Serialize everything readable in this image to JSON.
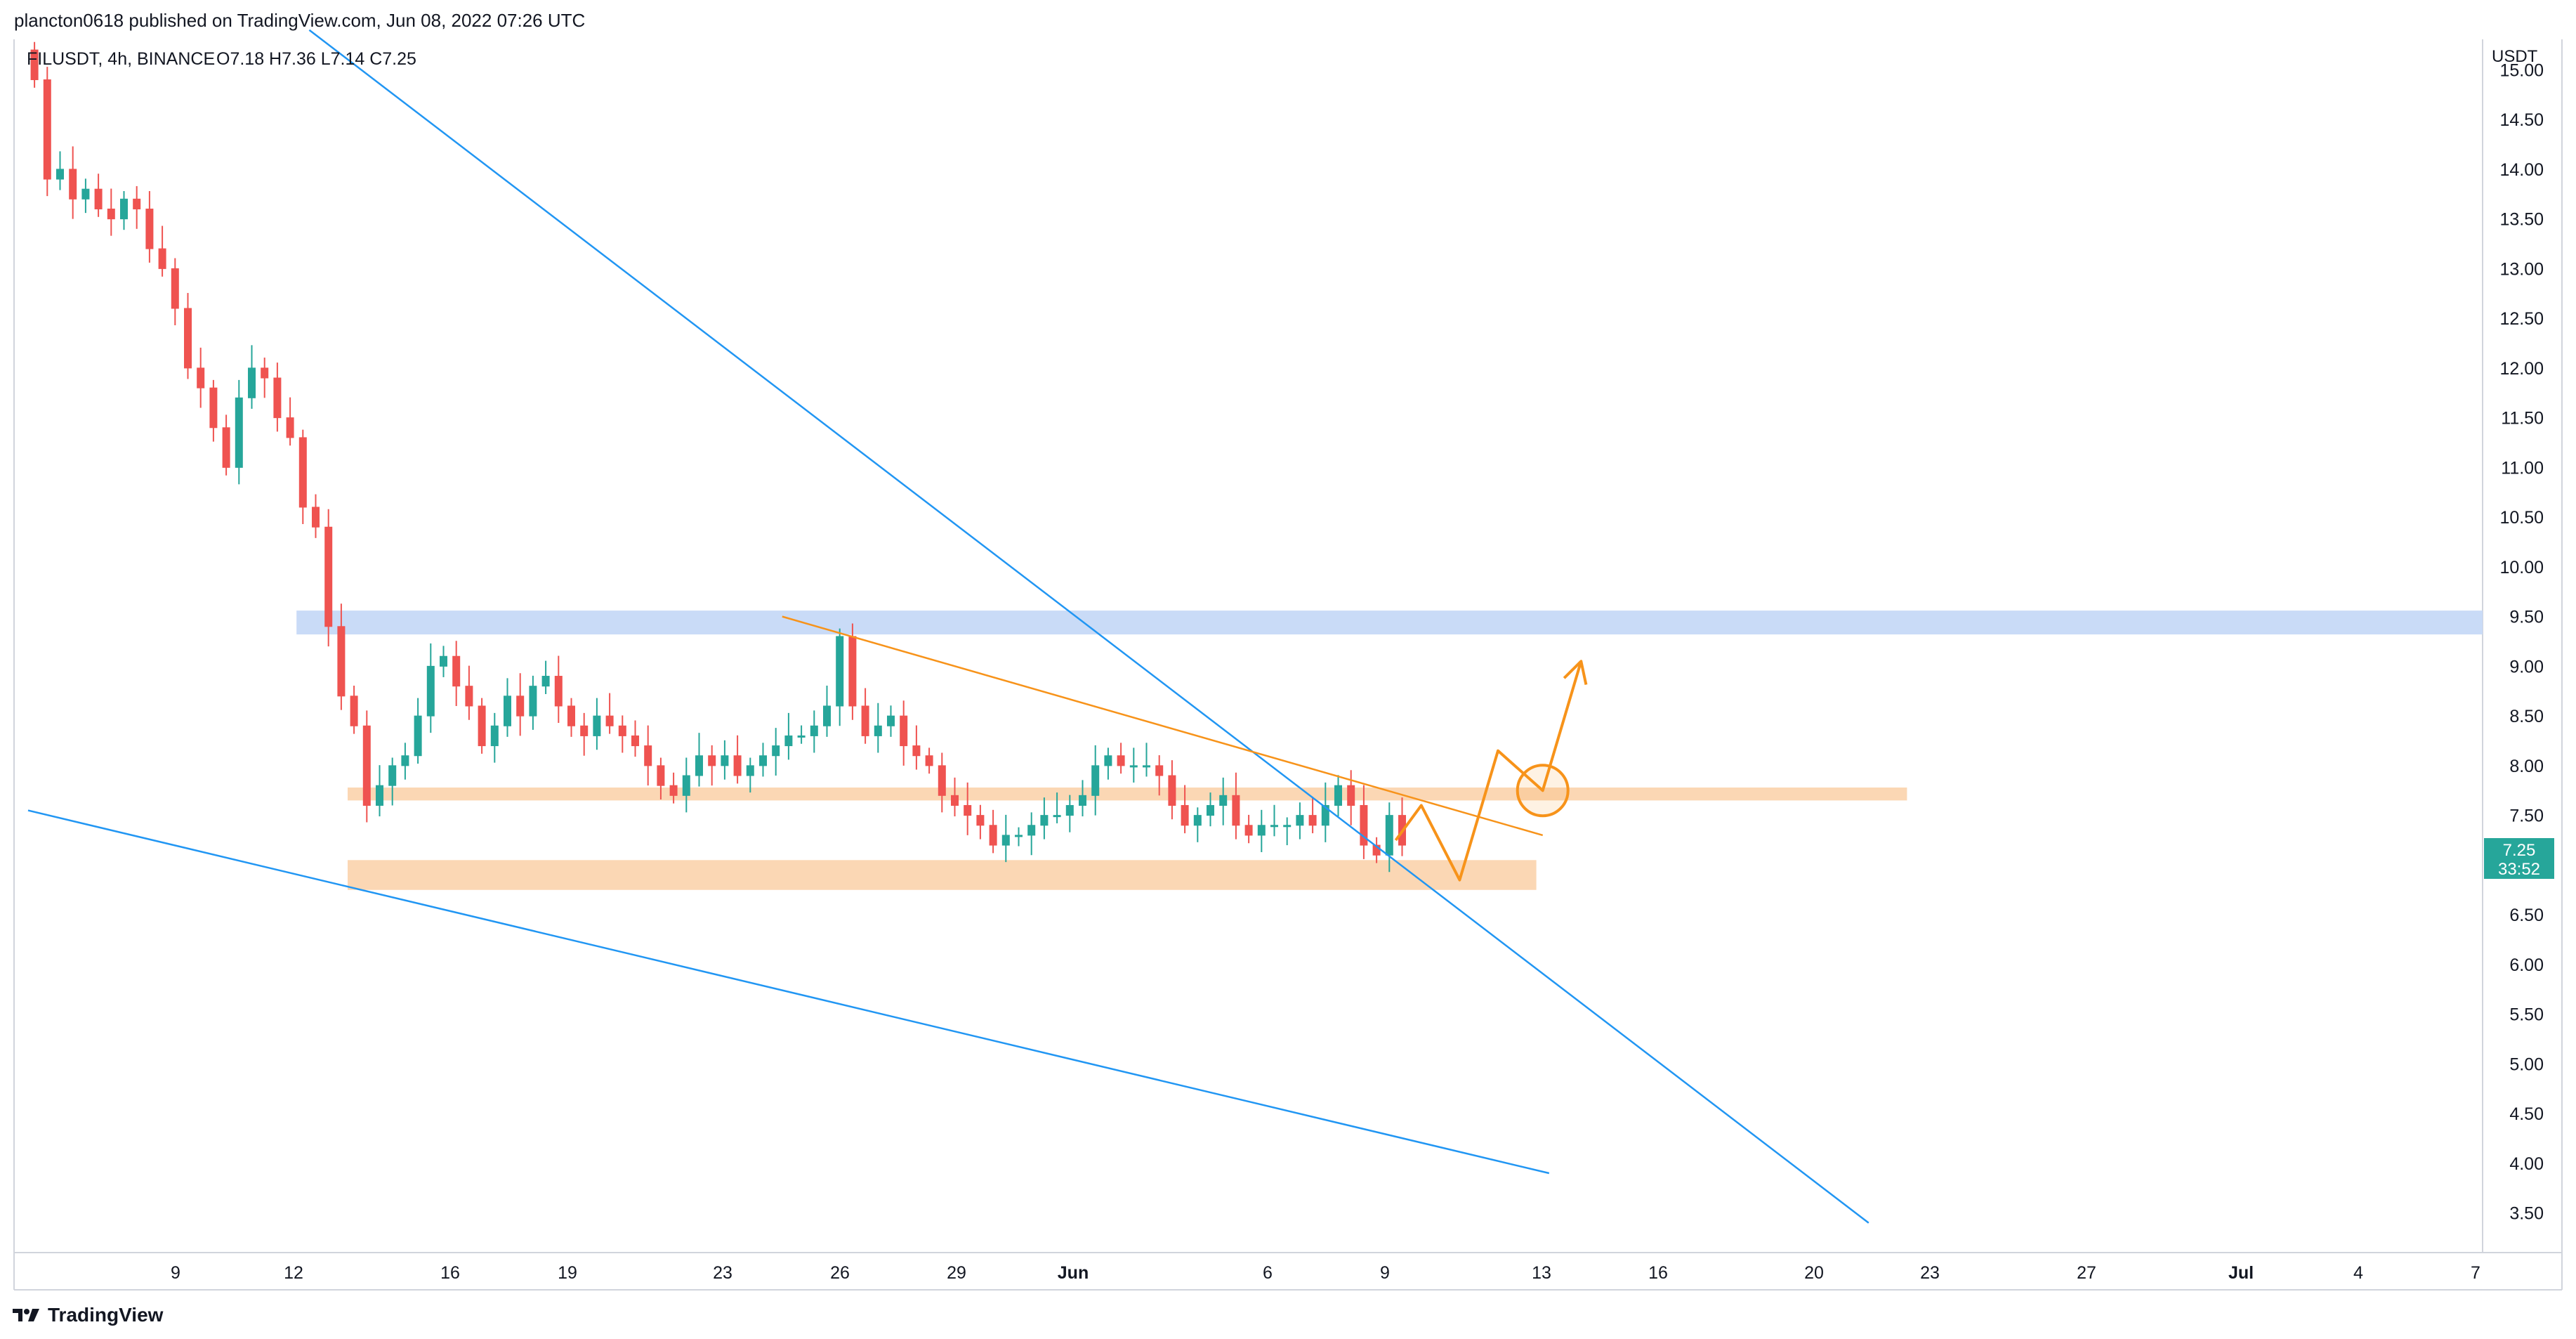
{
  "header": {
    "publisher_line": "plancton0618 published on TradingView.com, Jun 08, 2022 07:26 UTC"
  },
  "legend": {
    "symbol": "FILUSDT, 4h, BINANCE",
    "ohlc": "O7.18  H7.36  L7.14  C7.25"
  },
  "footer": {
    "brand": "TradingView"
  },
  "colors": {
    "up": "#26a69a",
    "down": "#ef5350",
    "blue_line": "#2196f3",
    "orange": "#f7931a",
    "zone_orange": "#fbd7b4",
    "zone_blue": "#c9dbf7",
    "price_tag": "#26a69a"
  },
  "chart_data": {
    "type": "candlestick",
    "currency_label": "USDT",
    "y_ticks": [
      "15.00",
      "14.50",
      "14.00",
      "13.50",
      "13.00",
      "12.50",
      "12.00",
      "11.50",
      "11.00",
      "10.50",
      "10.00",
      "9.50",
      "9.00",
      "8.50",
      "8.00",
      "7.50",
      "6.50",
      "6.00",
      "5.50",
      "5.00",
      "4.50",
      "4.00",
      "3.50"
    ],
    "x_ticks": [
      "9",
      "12",
      "16",
      "19",
      "23",
      "26",
      "29",
      "Jun",
      "6",
      "9",
      "13",
      "16",
      "20",
      "23",
      "27",
      "Jul",
      "4",
      "7"
    ],
    "last_price": "7.25",
    "countdown": "33:52",
    "ylim": [
      3.3,
      15.2
    ],
    "close_path": [
      [
        0,
        14.9
      ],
      [
        1,
        13.9
      ],
      [
        2,
        14.0
      ],
      [
        3,
        13.7
      ],
      [
        4,
        13.8
      ],
      [
        5,
        13.6
      ],
      [
        6,
        13.5
      ],
      [
        7,
        13.7
      ],
      [
        8,
        13.6
      ],
      [
        9,
        13.2
      ],
      [
        10,
        13.0
      ],
      [
        11,
        12.6
      ],
      [
        12,
        12.0
      ],
      [
        13,
        11.8
      ],
      [
        14,
        11.4
      ],
      [
        15,
        11.0
      ],
      [
        16,
        11.7
      ],
      [
        17,
        12.0
      ],
      [
        18,
        11.9
      ],
      [
        19,
        11.5
      ],
      [
        20,
        11.3
      ],
      [
        21,
        10.6
      ],
      [
        22,
        10.4
      ],
      [
        23,
        9.4
      ],
      [
        24,
        8.7
      ],
      [
        25,
        8.4
      ],
      [
        26,
        7.6
      ],
      [
        27,
        7.8
      ],
      [
        28,
        8.0
      ],
      [
        29,
        8.1
      ],
      [
        30,
        8.5
      ],
      [
        31,
        9.0
      ],
      [
        32,
        9.1
      ],
      [
        33,
        8.8
      ],
      [
        34,
        8.6
      ],
      [
        35,
        8.2
      ],
      [
        36,
        8.4
      ],
      [
        37,
        8.7
      ],
      [
        38,
        8.5
      ],
      [
        39,
        8.8
      ],
      [
        40,
        8.9
      ],
      [
        41,
        8.6
      ],
      [
        42,
        8.4
      ],
      [
        43,
        8.3
      ],
      [
        44,
        8.5
      ],
      [
        45,
        8.4
      ],
      [
        46,
        8.3
      ],
      [
        47,
        8.2
      ],
      [
        48,
        8.0
      ],
      [
        49,
        7.8
      ],
      [
        50,
        7.7
      ],
      [
        51,
        7.9
      ],
      [
        52,
        8.1
      ],
      [
        53,
        8.0
      ],
      [
        54,
        8.1
      ],
      [
        55,
        7.9
      ],
      [
        56,
        8.0
      ],
      [
        57,
        8.1
      ],
      [
        58,
        8.2
      ],
      [
        59,
        8.3
      ],
      [
        60,
        8.3
      ],
      [
        61,
        8.4
      ],
      [
        62,
        8.6
      ],
      [
        63,
        9.3
      ],
      [
        64,
        8.6
      ],
      [
        65,
        8.3
      ],
      [
        66,
        8.4
      ],
      [
        67,
        8.5
      ],
      [
        68,
        8.2
      ],
      [
        69,
        8.1
      ],
      [
        70,
        8.0
      ],
      [
        71,
        7.7
      ],
      [
        72,
        7.6
      ],
      [
        73,
        7.5
      ],
      [
        74,
        7.4
      ],
      [
        75,
        7.2
      ],
      [
        76,
        7.3
      ],
      [
        77,
        7.3
      ],
      [
        78,
        7.4
      ],
      [
        79,
        7.5
      ],
      [
        80,
        7.5
      ],
      [
        81,
        7.6
      ],
      [
        82,
        7.7
      ],
      [
        83,
        8.0
      ],
      [
        84,
        8.1
      ],
      [
        85,
        8.0
      ],
      [
        86,
        8.0
      ],
      [
        87,
        8.0
      ],
      [
        88,
        7.9
      ],
      [
        89,
        7.6
      ],
      [
        90,
        7.4
      ],
      [
        91,
        7.5
      ],
      [
        92,
        7.6
      ],
      [
        93,
        7.7
      ],
      [
        94,
        7.4
      ],
      [
        95,
        7.3
      ],
      [
        96,
        7.4
      ],
      [
        97,
        7.4
      ],
      [
        98,
        7.4
      ],
      [
        99,
        7.5
      ],
      [
        100,
        7.4
      ],
      [
        101,
        7.6
      ],
      [
        102,
        7.8
      ],
      [
        103,
        7.6
      ],
      [
        104,
        7.2
      ],
      [
        105,
        7.1
      ],
      [
        106,
        7.5
      ],
      [
        107,
        7.2
      ]
    ],
    "zones": [
      {
        "name": "resistance-blue",
        "from": 9.32,
        "to": 9.56,
        "x_start": 21.0,
        "x_end": 200
      },
      {
        "name": "support-orange-upper",
        "from": 7.65,
        "to": 7.78,
        "x_start": 25.0,
        "x_end": 147
      },
      {
        "name": "support-orange-lower",
        "from": 6.75,
        "to": 7.05,
        "x_start": 25.0,
        "x_end": 118
      }
    ],
    "trendlines": [
      {
        "name": "descending-blue-upper",
        "color": "blue",
        "p1": [
          22.0,
          15.4
        ],
        "p2": [
          144.0,
          3.4
        ]
      },
      {
        "name": "lower-blue",
        "color": "blue",
        "p1": [
          0,
          7.55
        ],
        "p2": [
          119.0,
          3.9
        ]
      },
      {
        "name": "orange-descending",
        "color": "orange",
        "p1": [
          59.0,
          9.5
        ],
        "p2": [
          118.5,
          7.3
        ]
      }
    ],
    "projection": [
      [
        107,
        7.25
      ],
      [
        109,
        7.6
      ],
      [
        112,
        6.85
      ],
      [
        115,
        8.15
      ],
      [
        118.5,
        7.75
      ],
      [
        121.5,
        9.05
      ]
    ],
    "projection_circle": [
      118.5,
      7.75
    ]
  }
}
